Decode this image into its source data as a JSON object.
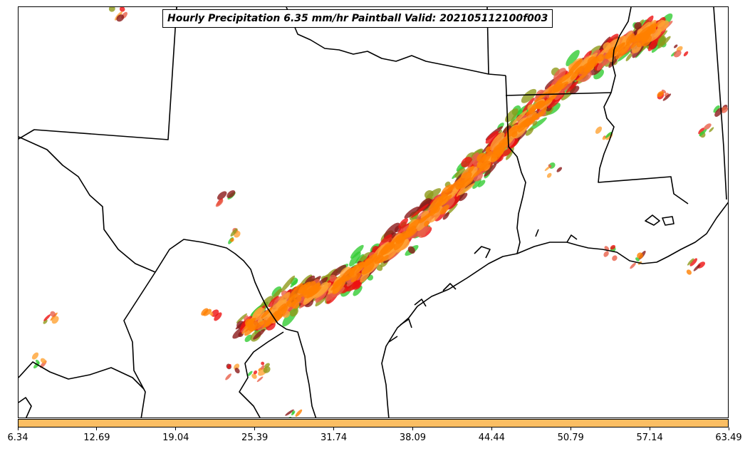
{
  "title": "Hourly Precipitation 6.35 mm/hr Paintball Valid: 202105112100f003",
  "colorbar": {
    "fill_color": "#fbbe63",
    "ticks": [
      "6.34",
      "12.69",
      "19.04",
      "25.39",
      "31.74",
      "38.09",
      "44.44",
      "50.79",
      "57.14",
      "63.49"
    ]
  },
  "map": {
    "region": "Texas, Louisiana, Oklahoma, Arkansas, Mississippi and northeastern Mexico",
    "palette": {
      "green": "#33cc33",
      "olive": "#8f9a1a",
      "red": "#ee1111",
      "dark_red": "#8b1a1a",
      "orange": "#ff8000",
      "light_orange": "#ffa333",
      "salmon": "#e8604a"
    }
  }
}
